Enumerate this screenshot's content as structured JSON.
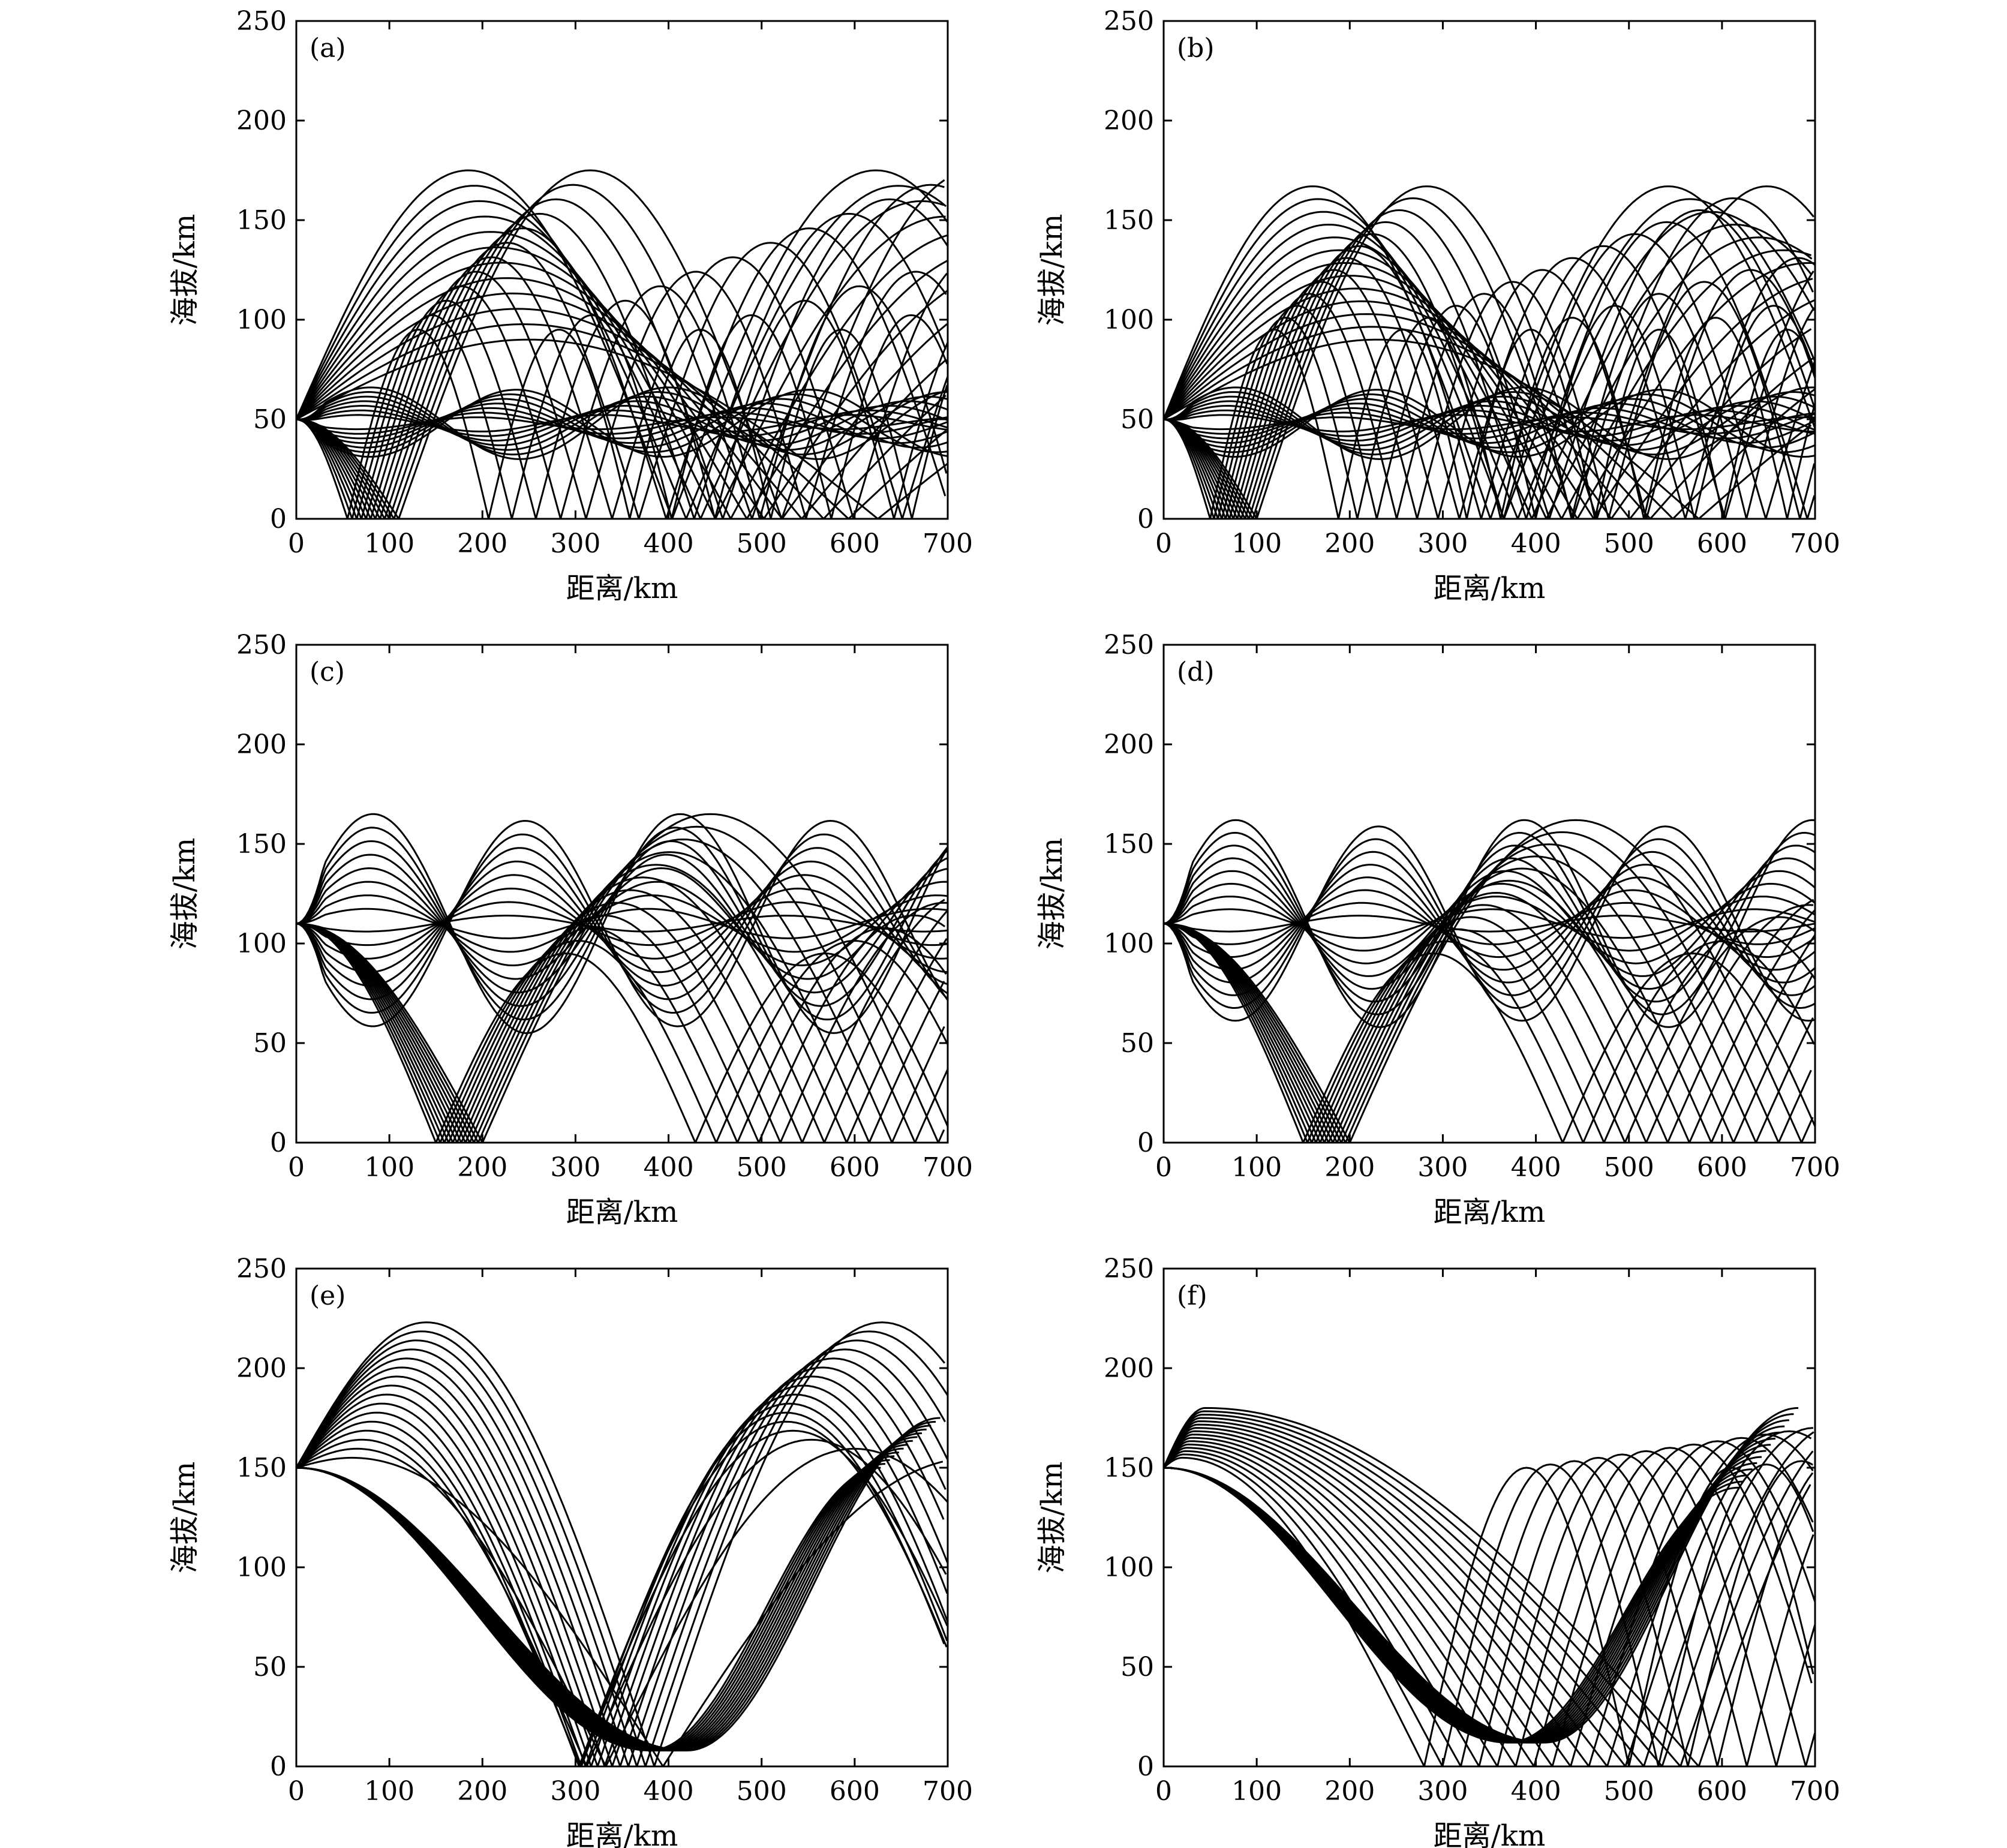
{
  "figure": {
    "background": "#ffffff",
    "line_color": "#000000"
  },
  "chart_data": [
    {
      "id": "a",
      "panel_label": "(a)",
      "type": "line",
      "xlabel": "距离/km",
      "ylabel": "海拔/km",
      "xlim": [
        0,
        700
      ],
      "ylim": [
        0,
        250
      ],
      "xticks": [
        0,
        100,
        200,
        300,
        400,
        500,
        600,
        700
      ],
      "yticks": [
        0,
        50,
        100,
        150,
        200,
        250
      ],
      "source": {
        "x": 0,
        "y": 50
      },
      "ray_families": [
        {
          "kind": "high",
          "count": 12,
          "apex_height_range": [
            90,
            175
          ],
          "apex_distance_range": [
            250,
            185
          ],
          "ground_bounce_height": 0
        },
        {
          "kind": "duct",
          "count": 14,
          "center": 48,
          "amplitude_range": [
            3,
            18
          ],
          "wavelength_range": [
            260,
            320
          ]
        },
        {
          "kind": "down",
          "count": 12,
          "bounce_distance_range": [
            55,
            110
          ],
          "apex_height_range": [
            95,
            175
          ]
        }
      ],
      "grid": false,
      "legend": false
    },
    {
      "id": "b",
      "panel_label": "(b)",
      "type": "line",
      "xlabel": "距离/km",
      "ylabel": "海拔/km",
      "xlim": [
        0,
        700
      ],
      "ylim": [
        0,
        250
      ],
      "xticks": [
        0,
        100,
        200,
        300,
        400,
        500,
        600,
        700
      ],
      "yticks": [
        0,
        50,
        100,
        150,
        200,
        250
      ],
      "source": {
        "x": 0,
        "y": 50
      },
      "ray_families": [
        {
          "kind": "high",
          "count": 13,
          "apex_height_range": [
            90,
            167
          ],
          "apex_distance_range": [
            230,
            160
          ],
          "ground_bounce_height": 0
        },
        {
          "kind": "duct",
          "count": 14,
          "center": 48,
          "amplitude_range": [
            3,
            18
          ],
          "wavelength_range": [
            250,
            310
          ]
        },
        {
          "kind": "down",
          "count": 13,
          "bounce_distance_range": [
            50,
            100
          ],
          "apex_height_range": [
            95,
            167
          ]
        }
      ],
      "grid": false,
      "legend": false
    },
    {
      "id": "c",
      "panel_label": "(c)",
      "type": "line",
      "xlabel": "距离/km",
      "ylabel": "海拔/km",
      "xlim": [
        0,
        700
      ],
      "ylim": [
        0,
        250
      ],
      "xticks": [
        0,
        100,
        200,
        300,
        400,
        500,
        600,
        700
      ],
      "yticks": [
        0,
        50,
        100,
        150,
        200,
        250
      ],
      "source": {
        "x": 0,
        "y": 110
      },
      "ray_families": [
        {
          "kind": "duct",
          "count": 16,
          "center": 110,
          "amplitude_range": [
            4,
            55
          ],
          "wavelength_range": [
            300,
            330
          ]
        },
        {
          "kind": "down",
          "count": 12,
          "bounce_distance_range": [
            150,
            200
          ],
          "apex_height_range": [
            95,
            165
          ]
        }
      ],
      "grid": false,
      "legend": false
    },
    {
      "id": "d",
      "panel_label": "(d)",
      "type": "line",
      "xlabel": "距离/km",
      "ylabel": "海拔/km",
      "xlim": [
        0,
        700
      ],
      "ylim": [
        0,
        250
      ],
      "xticks": [
        0,
        100,
        200,
        300,
        400,
        500,
        600,
        700
      ],
      "yticks": [
        0,
        50,
        100,
        150,
        200,
        250
      ],
      "source": {
        "x": 0,
        "y": 110
      },
      "ray_families": [
        {
          "kind": "duct",
          "count": 16,
          "center": 110,
          "amplitude_range": [
            4,
            52
          ],
          "wavelength_range": [
            280,
            310
          ]
        },
        {
          "kind": "down",
          "count": 12,
          "bounce_distance_range": [
            150,
            200
          ],
          "apex_height_range": [
            95,
            162
          ]
        }
      ],
      "grid": false,
      "legend": false
    },
    {
      "id": "e",
      "panel_label": "(e)",
      "type": "line",
      "xlabel": "距离/km",
      "ylabel": "海拔/km",
      "xlim": [
        0,
        700
      ],
      "ylim": [
        0,
        250
      ],
      "xticks": [
        0,
        100,
        200,
        300,
        400,
        500,
        600,
        700
      ],
      "yticks": [
        0,
        50,
        100,
        150,
        200,
        250
      ],
      "source": {
        "x": 0,
        "y": 150
      },
      "ray_families": [
        {
          "kind": "high",
          "count": 16,
          "apex_height_range": [
            155,
            223
          ],
          "apex_distance_range": [
            60,
            140
          ],
          "ground_bounce_height": 0
        },
        {
          "kind": "dip",
          "count": 14,
          "trough_distance": 400,
          "trough_height": 8,
          "apex_height_range": [
            150,
            175
          ]
        }
      ],
      "grid": false,
      "legend": false
    },
    {
      "id": "f",
      "panel_label": "(f)",
      "type": "line",
      "xlabel": "距离/km",
      "ylabel": "海拔/km",
      "xlim": [
        0,
        700
      ],
      "ylim": [
        0,
        250
      ],
      "xticks": [
        0,
        100,
        200,
        300,
        400,
        500,
        600,
        700
      ],
      "yticks": [
        0,
        50,
        100,
        150,
        200,
        250
      ],
      "source": {
        "x": 0,
        "y": 150
      },
      "ray_families": [
        {
          "kind": "cusp",
          "count": 16,
          "apex_height_range": [
            155,
            180
          ],
          "apex_distance_range": [
            20,
            45
          ]
        },
        {
          "kind": "dip",
          "count": 14,
          "trough_distance": 390,
          "trough_height": 12,
          "apex_height_range": [
            140,
            180
          ]
        }
      ],
      "grid": false,
      "legend": false
    }
  ]
}
